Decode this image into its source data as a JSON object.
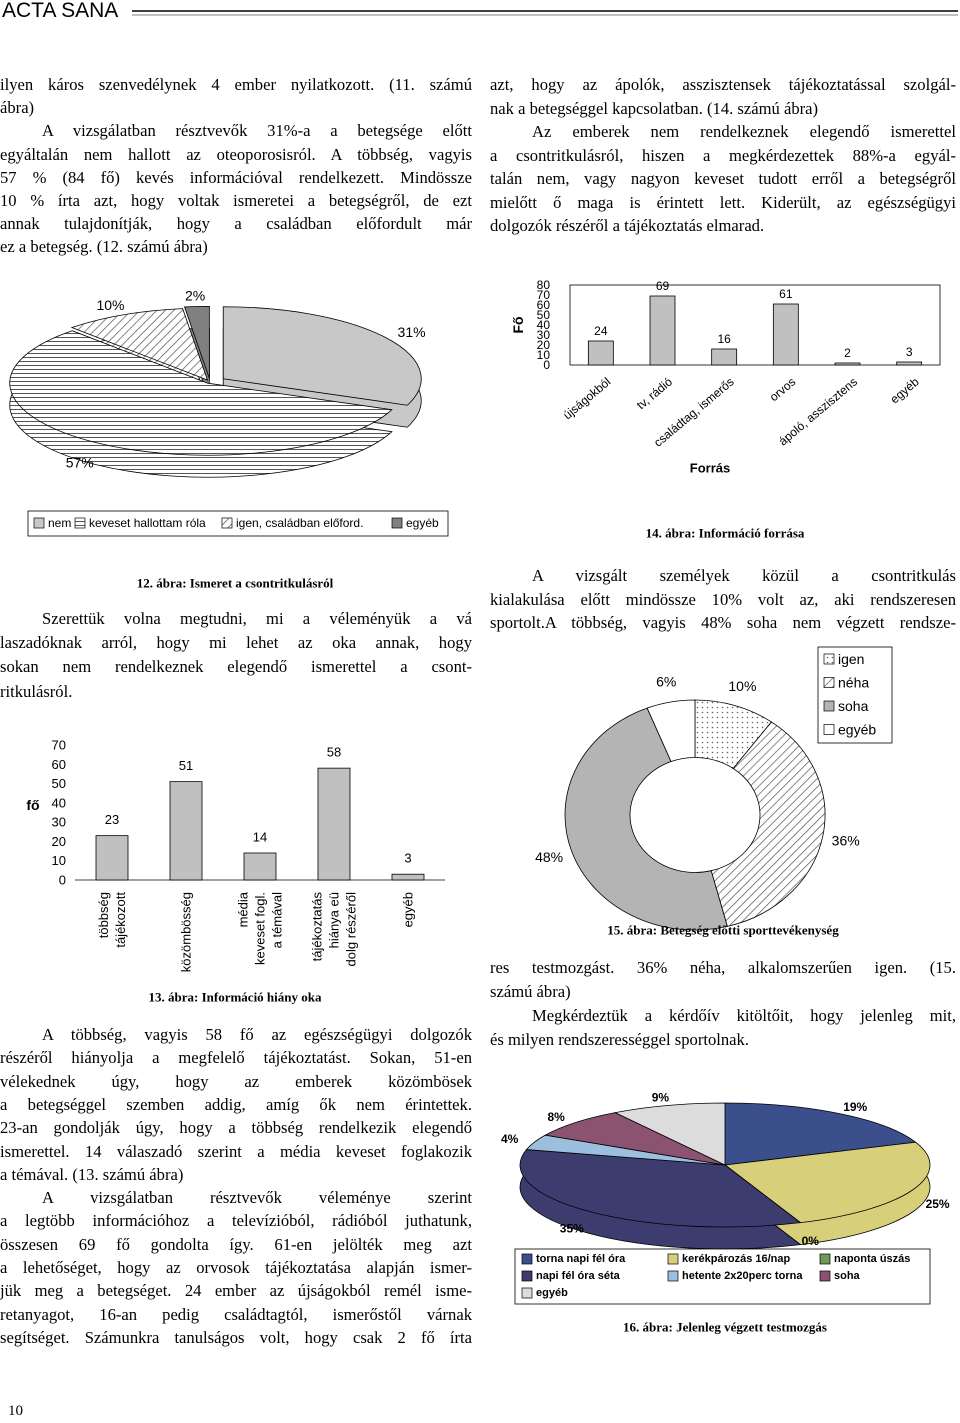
{
  "header": "ACTA SANA",
  "page_number": "10",
  "text": {
    "left_top": [
      "ilyen káros szenvedélynek 4 ember nyilatkozott. (11. számú",
      "ábra)",
      "A vizsgálatban résztvevők 31%-a a betegsége előtt",
      "egyáltalán nem hallott az oteoporosisról. A többség, vagyis",
      "57 % (84 fő) kevés információval rendelkezett. Mindössze",
      "10 % írta azt, hogy voltak ismeretei a betegségről, de ezt",
      "annak tulajdonítják, hogy a családban előfordult már",
      "ez a betegség. (12. számú ábra)"
    ],
    "right_top": [
      "azt, hogy az ápolók, asszisztensek tájékoztatással szolgál-",
      "nak a betegséggel kapcsolatban. (14. számú ábra)",
      "Az emberek nem rendelkeznek elegendő ismerettel",
      "a csontritkulásról, hiszen a megkérdezettek 88%-a egyál-",
      "talán nem, vagy nagyon keveset tudott erről a betegségről",
      "mielőtt ő maga is érintett lett. Kiderült, az egészségügyi",
      "dolgozók részéről a tájékoztatás elmarad."
    ],
    "left_mid": [
      "Szerettük volna megtudni, mi a véleményük a vá",
      "laszadóknak arról, hogy mi lehet az oka annak, hogy",
      "sokan nem rendelkeznek elegendő ismerettel a csont-",
      "ritkulásról."
    ],
    "right_mid": [
      "A vizsgált személyek közül a csontritkulás",
      "kialakulása előtt mindössze 10% volt az, aki rendszeresen",
      "sportolt.A többség, vagyis 48% soha nem végzett rendsze-"
    ],
    "right_lower": [
      "res testmozgást. 36% néha, alkalomszerűen igen. (15.",
      "számú ábra)",
      "Megkérdeztük a kérdőív kitöltőit, hogy jelenleg mit,",
      "és milyen rendszerességgel sportolnak."
    ],
    "left_bottom": [
      "A többség, vagyis 58 fő az egészségügyi dolgozók",
      "részéről hiányolja a megfelelő tájékoztatást. Sokan, 51-en",
      "vélekednek úgy, hogy az emberek közömbösek",
      "a betegséggel szemben addig, amíg ők nem érintettek.",
      "23-an gondolják úgy, hogy a többség rendelkezik elegendő",
      "ismerettel. 14 válaszadó szerint a média keveset foglakozik",
      "a témával. (13. számú ábra)",
      "A vizsgálatban résztvevők véleménye szerint",
      "a legtöbb információhoz a televízióból, rádióból juthatunk,",
      "összesen 69 fő gondolta így. 61-en jelölték meg azt",
      "a lehetőséget, hogy az orvosok tájékoztatása alapján ismer-",
      "jük meg a betegséget. 24 ember az újságokból remél isme-",
      "retanyagot, 16-an pedig családtagtól, ismerőstől várnak",
      "segítséget. Számunkra tanulságos volt, hogy csak 2 fő írta"
    ]
  },
  "chart_data": [
    {
      "type": "pie",
      "title": "12. ábra: Ismeret a csontritkulásról",
      "categories": [
        "nem",
        "keveset hallottam róla",
        "igen, családban előford.",
        "egyéb"
      ],
      "values": [
        31,
        57,
        10,
        2
      ],
      "value_labels": [
        "31%",
        "57%",
        "10%",
        "2%"
      ],
      "colors": [
        "#c8c8c8",
        "#ffffff",
        "#ffffff",
        "#808080"
      ],
      "patterns": [
        "solid",
        "horizontal",
        "diagonal",
        "solid"
      ],
      "legend": "bottom"
    },
    {
      "type": "bar",
      "title": "13. ábra: Információ hiány oka",
      "y_label": "fő",
      "categories": [
        [
          "többség",
          "tájékozott"
        ],
        [
          "közömbösség"
        ],
        [
          "média",
          "keveset fogl.",
          "a témával"
        ],
        [
          "tájékoztatás",
          "hiánya eü",
          "dolg részéről"
        ],
        [
          "egyéb"
        ]
      ],
      "values": [
        23,
        51,
        14,
        58,
        3
      ],
      "color": "#c0c0c0",
      "ylim": [
        0,
        70
      ],
      "yticks": [
        0,
        10,
        20,
        30,
        40,
        50,
        60,
        70
      ]
    },
    {
      "type": "bar",
      "title": "14. ábra: Információ forrása",
      "y_label": "Fő",
      "x_label": "Forrás",
      "categories": [
        "újságokból",
        "tv, rádió",
        "családtag, ismerős",
        "orvos",
        "ápoló, asszisztens",
        "egyéb"
      ],
      "values": [
        24,
        69,
        16,
        61,
        2,
        3
      ],
      "color": "#c0c0c0",
      "ylim": [
        0,
        80
      ],
      "yticks": [
        0,
        10,
        20,
        30,
        40,
        50,
        60,
        70,
        80
      ],
      "frame": true
    },
    {
      "type": "donut",
      "title": "15. ábra: Betegség előtti sporttevékenység",
      "categories": [
        "igen",
        "néha",
        "soha",
        "egyéb"
      ],
      "values": [
        10,
        36,
        48,
        6
      ],
      "value_labels": [
        "10%",
        "36%",
        "48%",
        "6%"
      ],
      "colors": [
        "#ffffff",
        "#ffffff",
        "#b4b4b4",
        "#ffffff"
      ],
      "patterns": [
        "dots",
        "diagonal",
        "solid",
        "solid"
      ],
      "legend": "right"
    },
    {
      "type": "pie",
      "title": "16. ábra: Jelenleg végzett testmozgás",
      "categories": [
        "torna napi fél óra",
        "kerékpározás 16/nap",
        "naponta úszás",
        "napi fél óra séta",
        "hetente 2x20perc torna",
        "soha",
        "egyéb"
      ],
      "values": [
        19,
        25,
        0,
        35,
        4,
        8,
        9
      ],
      "value_labels": [
        "19%",
        "25%",
        "0%",
        "35%",
        "4%",
        "8%",
        "9%"
      ],
      "colors": [
        "#3a4f8c",
        "#d8cf7a",
        "#6f9a55",
        "#3c3c6e",
        "#9cbfe0",
        "#8c5272",
        "#dcdcdc"
      ],
      "patterns": [
        "solid",
        "solid",
        "solid",
        "solid",
        "solid",
        "solid",
        "solid"
      ],
      "legend": "bottom"
    }
  ]
}
